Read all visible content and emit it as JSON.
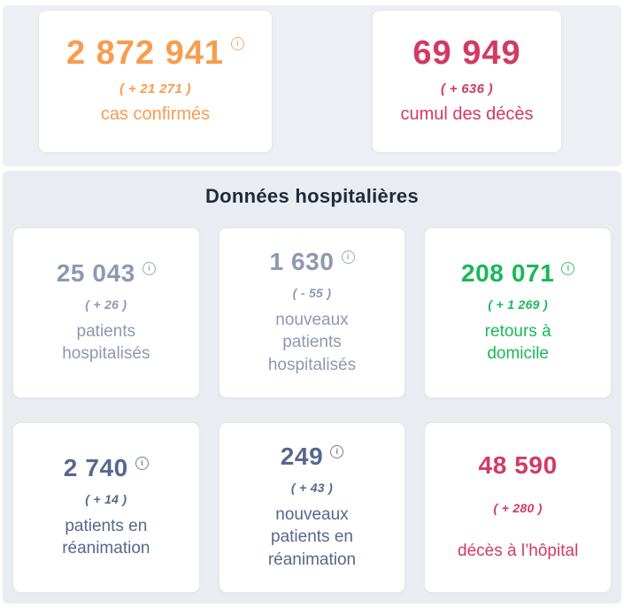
{
  "colors": {
    "orange": "#f89c4e",
    "crimson": "#d23a63",
    "slate_light": "#8c99b1",
    "slate_dark": "#56688d",
    "green": "#17b957",
    "section_title": "#1f2b38",
    "panel_top_bg": "#edeff4",
    "panel_bottom_bg": "#e9edf2",
    "card_bg": "#ffffff",
    "card_border": "#e2e6ed"
  },
  "icons": {
    "info_glyph": "i"
  },
  "summary_cards": [
    {
      "value": "2 872 941",
      "delta": "( + 21 271 )",
      "label": "cas confirmés"
    },
    {
      "value": "69 949",
      "delta": "( + 636 )",
      "label": "cumul des décès"
    }
  ],
  "hospital": {
    "title": "Données hospitalières",
    "cards": [
      {
        "value": "25 043",
        "delta": "( + 26 )",
        "label": "patients\nhospitalisés"
      },
      {
        "value": "1 630",
        "delta": "( - 55 )",
        "label": "nouveaux\npatients\nhospitalisés"
      },
      {
        "value": "208 071",
        "delta": "( + 1 269 )",
        "label": "retours à\ndomicile"
      },
      {
        "value": "2 740",
        "delta": "( + 14 )",
        "label": "patients en\nréanimation"
      },
      {
        "value": "249",
        "delta": "( + 43 )",
        "label": "nouveaux\npatients en\nréanimation"
      },
      {
        "value": "48 590",
        "delta": "( + 280 )",
        "label": "décès à l’hôpital"
      }
    ]
  }
}
